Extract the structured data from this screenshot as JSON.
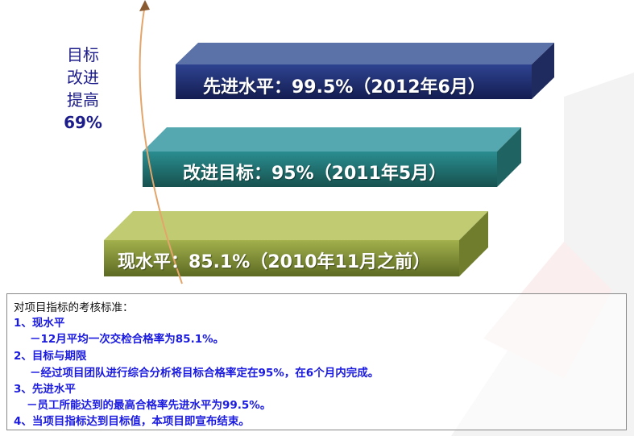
{
  "side_label": {
    "lines": [
      "目标",
      "改进",
      "提高"
    ],
    "percent": "69%"
  },
  "levels": [
    {
      "label": "先进水平：99.5%（2012年6月）",
      "color": "#2c3d85"
    },
    {
      "label": "改进目标：95%（2011年5月）",
      "color": "#2a8a8e"
    },
    {
      "label": "现水平：85.1%（2010年11月之前）",
      "color": "#8fa03e"
    }
  ],
  "criteria": {
    "title": "对项目指标的考核标准：",
    "items": [
      {
        "heading": "1、现水平",
        "detail": "－12月平均一次交检合格率为85.1%。"
      },
      {
        "heading": "2、目标与期限",
        "detail": "－经过项目团队进行综合分析将目标合格率定在95%，在6个月内完成。"
      },
      {
        "heading": "3、先进水平",
        "detail": "－员工所能达到的最高合格率先进水平为99.5%。"
      },
      {
        "heading": "4、当项目指标达到目标值，本项目即宣布结束。",
        "detail": ""
      }
    ]
  }
}
